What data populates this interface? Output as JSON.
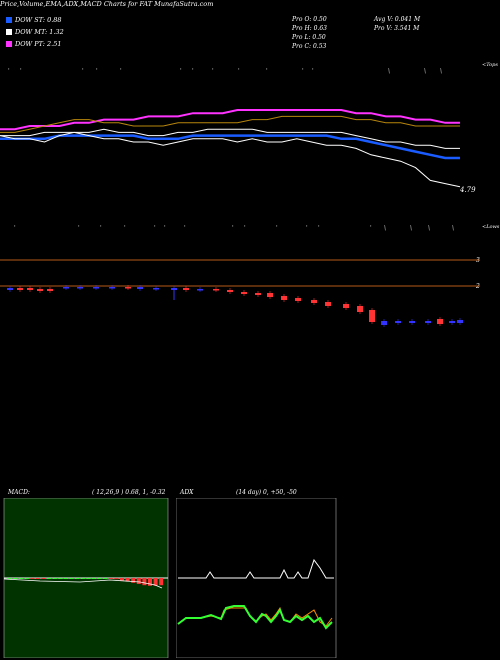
{
  "header": {
    "title": "Price,Volume,EMA,ADX,MACD Charts for FAT MunafaSutra.com",
    "dow": [
      {
        "label": "DOW ST: 0.88",
        "color": "#1a5cff"
      },
      {
        "label": "DOW MT: 1.32",
        "color": "#ffffff"
      },
      {
        "label": "DOW PT: 2.51",
        "color": "#ff33ff"
      }
    ],
    "stats": [
      {
        "label": "Pro",
        "value": "O: 0.50"
      },
      {
        "label": "Pro",
        "value": "H: 0.63"
      },
      {
        "label": "Pro",
        "value": "L: 0.50"
      },
      {
        "label": "Pro",
        "value": "C: 0.53"
      }
    ],
    "avg_volume": "Avg V: 0.041 M",
    "pro_volume": "Pro  V: 3.541 M"
  },
  "labels": {
    "tops": "<Tops",
    "lows": "<Lows",
    "last_price": "4.79",
    "level_3": "3",
    "level_2": "2"
  },
  "macd_panel": {
    "title": "MACD:",
    "params": "( 12,26,9 ) 0.68,  1,  -0.32"
  },
  "adx_panel": {
    "title": "ADX",
    "params": "(14  day) 0,  +50,  -50"
  },
  "chart_data": [
    {
      "type": "line",
      "panel": "price",
      "series": [
        {
          "values": [
            94,
            94,
            95,
            95,
            95,
            96,
            96,
            97,
            97,
            97,
            98,
            98,
            98,
            99,
            99,
            99,
            100,
            100,
            100,
            100,
            100,
            100,
            100,
            100,
            99,
            99,
            98,
            98,
            97,
            97,
            96,
            96
          ]
        },
        {
          "values": [
            93,
            93,
            94,
            95,
            96,
            97,
            97,
            96,
            96,
            95,
            95,
            95,
            96,
            96,
            96,
            96,
            96,
            97,
            97,
            98,
            98,
            98,
            98,
            98,
            97,
            97,
            96,
            96,
            95,
            95,
            95,
            95
          ]
        },
        {
          "values": [
            92,
            92,
            92,
            93,
            93,
            93,
            93,
            94,
            93,
            93,
            92,
            92,
            93,
            93,
            94,
            94,
            94,
            94,
            93,
            93,
            93,
            93,
            93,
            93,
            92,
            91,
            90,
            90,
            89,
            89,
            88,
            88
          ]
        },
        {
          "values": [
            91,
            91,
            91,
            91,
            92,
            92,
            92,
            92,
            92,
            92,
            91,
            91,
            91,
            92,
            92,
            92,
            92,
            92,
            92,
            92,
            92,
            92,
            92,
            91,
            91,
            90,
            89,
            88,
            87,
            86,
            85,
            85
          ]
        },
        {
          "values": [
            92,
            91,
            91,
            90,
            92,
            93,
            92,
            91,
            91,
            90,
            90,
            89,
            90,
            91,
            91,
            91,
            90,
            91,
            90,
            90,
            91,
            90,
            89,
            89,
            88,
            86,
            85,
            84,
            82,
            78,
            77,
            76
          ]
        }
      ]
    },
    {
      "type": "bar",
      "panel": "macd",
      "series": [
        {
          "name": "MACD",
          "values": [
            0,
            0,
            0,
            0,
            -0.1,
            -0.1,
            -0.1,
            0,
            0,
            0,
            0,
            0,
            0,
            0,
            0,
            0,
            0,
            0,
            -0.1,
            -0.2,
            -0.4,
            -0.6,
            -0.8,
            -1,
            -1.2,
            -1.3,
            -1.3,
            -1.2
          ]
        }
      ]
    }
  ]
}
